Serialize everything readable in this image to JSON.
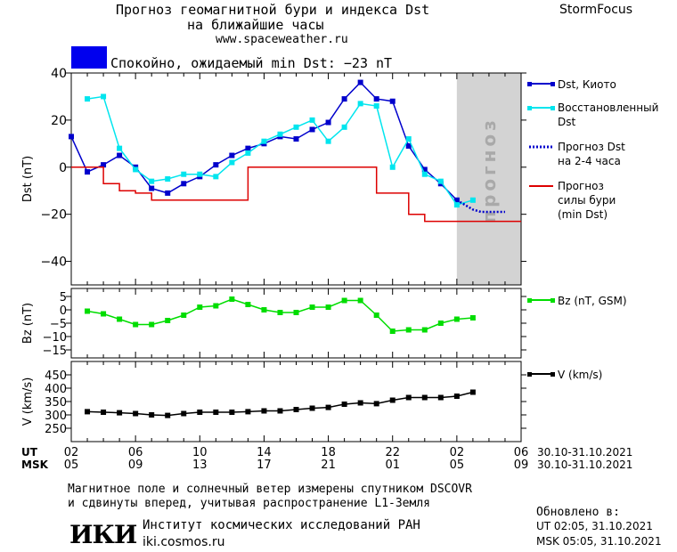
{
  "header": {
    "title_line1": "Прогноз геомагнитной бури и индекса Dst",
    "title_line2": "на ближайшие часы",
    "url": "www.spaceweather.ru",
    "brand": "StormFocus"
  },
  "status": {
    "text": "Спокойно, ожидаемый min Dst: −23 nT",
    "color": "#0000ee"
  },
  "forecast_zone_label": "прогноз",
  "colors": {
    "dst_kyoto": "#0000cc",
    "dst_restored": "#00e5ee",
    "dst_forecast": "#0000cc",
    "storm_forecast": "#dd0000",
    "bz": "#00dd00",
    "v": "#000000",
    "forecast_zone": "#d3d3d3"
  },
  "legend": {
    "dst_kyoto": "Dst, Киото",
    "dst_restored": [
      "Восстановленный",
      "Dst"
    ],
    "dst_forecast": [
      "Прогноз Dst",
      "на 2-4 часа"
    ],
    "storm_forecast": [
      "Прогноз",
      "силы бури",
      "(min Dst)"
    ],
    "bz": "Bz (nT, GSM)",
    "v": "V (km/s)"
  },
  "time_axis": {
    "ut_label": "UT",
    "msk_label": "MSK",
    "ut_ticks": [
      "02",
      "06",
      "10",
      "14",
      "18",
      "22",
      "02",
      "06"
    ],
    "msk_ticks": [
      "05",
      "09",
      "13",
      "17",
      "21",
      "01",
      "05",
      "09"
    ],
    "date_range": "30.10-31.10.2021"
  },
  "footer": {
    "line1": "Магнитное поле и солнечный ветер измерены спутником DSCOVR",
    "line2": "и сдвинуты вперед, учитывая распространение L1-Земля",
    "logo_text": "ИКИ",
    "institute": "Институт космических исследований РАН",
    "site": "iki.cosmos.ru",
    "updated_label": "Обновлено в:",
    "updated_ut": "UT  02:05, 31.10.2021",
    "updated_msk": "MSK 05:05, 31.10.2021"
  },
  "chart_data": [
    {
      "type": "line",
      "ylabel": "Dst (nT)",
      "ylim": [
        -50,
        40
      ],
      "yticks": [
        40,
        20,
        0,
        -20,
        -40
      ],
      "x_unit": "hours from 02 UT 30.10.2021",
      "xlim": [
        0,
        28
      ],
      "forecast_zone": [
        24,
        28
      ],
      "series": [
        {
          "name": "Dst, Киото",
          "style": "solid-square-markers",
          "x": [
            0,
            1,
            2,
            3,
            4,
            5,
            6,
            7,
            8,
            9,
            10,
            11,
            12,
            13,
            14,
            15,
            16,
            17,
            18,
            19,
            20,
            21,
            22,
            23,
            24
          ],
          "values": [
            13,
            -2,
            1,
            5,
            0,
            -9,
            -11,
            -7,
            -4,
            1,
            5,
            8,
            10,
            13,
            12,
            16,
            19,
            29,
            36,
            29,
            28,
            9,
            -1,
            -7,
            -14
          ]
        },
        {
          "name": "Восстановленный Dst",
          "style": "solid-square-markers",
          "x": [
            1,
            2,
            3,
            4,
            5,
            6,
            7,
            8,
            9,
            10,
            11,
            12,
            13,
            14,
            15,
            16,
            17,
            18,
            19,
            20,
            21,
            22,
            23,
            24,
            25
          ],
          "values": [
            29,
            30,
            8,
            -1,
            -6,
            -5,
            -3,
            -3,
            -4,
            2,
            6,
            11,
            14,
            17,
            20,
            11,
            17,
            27,
            26,
            0,
            12,
            -3,
            -6,
            -16,
            -14
          ]
        },
        {
          "name": "Прогноз Dst на 2-4 часа",
          "style": "dotted",
          "x": [
            24,
            24.5,
            25,
            25.5,
            26,
            26.5,
            27
          ],
          "values": [
            -14,
            -16,
            -18,
            -19,
            -19,
            -19,
            -19
          ]
        },
        {
          "name": "Прогноз силы бури (min Dst)",
          "style": "step",
          "x": [
            0,
            1,
            2,
            3,
            4,
            5,
            6,
            7,
            8,
            9,
            10,
            11,
            12,
            13,
            14,
            15,
            16,
            17,
            18,
            19,
            20,
            21,
            22,
            23,
            24,
            25,
            26,
            27,
            28
          ],
          "values": [
            0,
            0,
            -7,
            -10,
            -11,
            -14,
            -14,
            -14,
            -14,
            -14,
            -14,
            0,
            0,
            0,
            0,
            0,
            0,
            0,
            0,
            -11,
            -11,
            -20,
            -23,
            -23,
            -23,
            -23,
            -23,
            -23,
            -23
          ]
        }
      ]
    },
    {
      "type": "line",
      "ylabel": "Bz (nT)",
      "ylim": [
        -18,
        8
      ],
      "yticks": [
        5,
        0,
        -5,
        -10,
        -15
      ],
      "series": [
        {
          "name": "Bz (nT, GSM)",
          "x": [
            1,
            2,
            3,
            4,
            5,
            6,
            7,
            8,
            9,
            10,
            11,
            12,
            13,
            14,
            15,
            16,
            17,
            18,
            19,
            20,
            21,
            22,
            23,
            24,
            25
          ],
          "values": [
            -0.5,
            -1.5,
            -3.5,
            -5.5,
            -5.5,
            -4,
            -2,
            1,
            1.5,
            4,
            2,
            0,
            -1,
            -1,
            1,
            1,
            3.5,
            3.5,
            -2,
            -8,
            -7.5,
            -7.5,
            -5,
            -3.5,
            -3
          ]
        }
      ]
    },
    {
      "type": "line",
      "ylabel": "V (km/s)",
      "ylim": [
        200,
        500
      ],
      "yticks": [
        450,
        400,
        350,
        300,
        250
      ],
      "series": [
        {
          "name": "V (km/s)",
          "x": [
            1,
            2,
            3,
            4,
            5,
            6,
            7,
            8,
            9,
            10,
            11,
            12,
            13,
            14,
            15,
            16,
            17,
            18,
            19,
            20,
            21,
            22,
            23,
            24,
            25
          ],
          "values": [
            312,
            310,
            308,
            305,
            300,
            298,
            305,
            310,
            310,
            310,
            312,
            315,
            315,
            320,
            325,
            328,
            340,
            345,
            342,
            355,
            365,
            365,
            365,
            370,
            385
          ]
        }
      ]
    }
  ]
}
